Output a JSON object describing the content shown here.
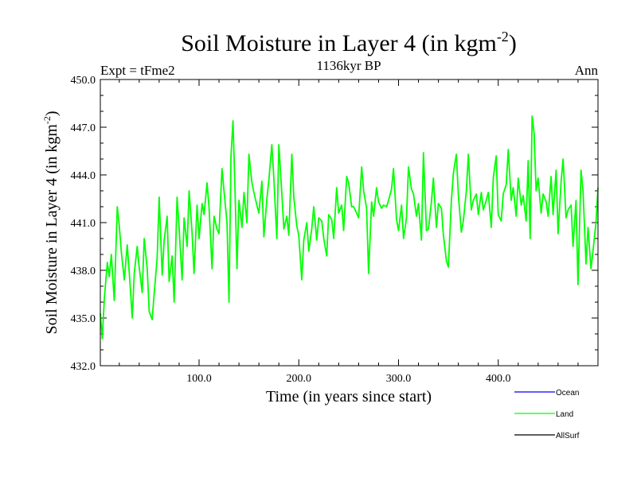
{
  "chart_data": {
    "type": "line",
    "title": "Soil Moisture in Layer 4 (in kgm",
    "title_sup": "-2",
    "title_close": ")",
    "subtitle": "1136kyr BP",
    "left_label": "Expt = tFme2",
    "right_label": "Ann",
    "xlabel": "Time (in years since start)",
    "ylabel": "Soil Moisture in Layer 4 (in kgm",
    "ylabel_sup": "-2",
    "ylabel_close": ")",
    "xlim": [
      1,
      500
    ],
    "ylim": [
      432,
      450
    ],
    "xticks": [
      100,
      200,
      300,
      400
    ],
    "xtick_labels": [
      "100.0",
      "200.0",
      "300.0",
      "400.0"
    ],
    "yticks": [
      432,
      435,
      438,
      441,
      444,
      447,
      450
    ],
    "ytick_labels": [
      "432.0",
      "435.0",
      "438.0",
      "441.0",
      "444.0",
      "447.0",
      "450.0"
    ],
    "legend": [
      {
        "name": "Ocean",
        "color": "#0000ff"
      },
      {
        "name": "Land",
        "color": "#00ff00"
      },
      {
        "name": "AllSurf",
        "color": "#000000"
      }
    ],
    "series": [
      {
        "name": "Land",
        "color": "#00ff00",
        "x": [
          1,
          3,
          5,
          8,
          10,
          12,
          15,
          18,
          20,
          22,
          25,
          28,
          30,
          33,
          35,
          38,
          40,
          43,
          45,
          48,
          50,
          53,
          55,
          58,
          60,
          63,
          65,
          68,
          70,
          73,
          75,
          78,
          80,
          83,
          85,
          88,
          90,
          93,
          95,
          98,
          100,
          103,
          105,
          108,
          110,
          113,
          115,
          118,
          120,
          123,
          125,
          128,
          130,
          132,
          134,
          136,
          138,
          140,
          143,
          145,
          148,
          150,
          153,
          155,
          158,
          160,
          163,
          165,
          168,
          170,
          173,
          175,
          178,
          180,
          183,
          185,
          188,
          190,
          193,
          195,
          198,
          200,
          203,
          205,
          208,
          210,
          213,
          215,
          218,
          220,
          223,
          225,
          228,
          230,
          233,
          235,
          238,
          240,
          243,
          245,
          248,
          250,
          253,
          255,
          258,
          260,
          263,
          265,
          268,
          270,
          273,
          275,
          278,
          280,
          283,
          285,
          288,
          290,
          293,
          295,
          298,
          300,
          303,
          305,
          308,
          310,
          313,
          315,
          318,
          320,
          323,
          325,
          328,
          330,
          333,
          335,
          338,
          340,
          343,
          345,
          348,
          350,
          353,
          355,
          358,
          360,
          363,
          365,
          368,
          370,
          373,
          375,
          378,
          380,
          383,
          385,
          388,
          390,
          393,
          395,
          398,
          400,
          403,
          405,
          408,
          410,
          413,
          415,
          418,
          420,
          423,
          425,
          428,
          430,
          432,
          434,
          436,
          438,
          440,
          443,
          445,
          448,
          450,
          453,
          455,
          458,
          460,
          463,
          465,
          468,
          470,
          473,
          475,
          478,
          480,
          483,
          485,
          488,
          490,
          493,
          495,
          498,
          500
        ],
        "values": [
          435.3,
          433.7,
          436.2,
          438.5,
          437.6,
          439.0,
          436.1,
          442.0,
          440.8,
          439.2,
          437.4,
          439.6,
          437.9,
          435.0,
          437.8,
          439.5,
          438.2,
          436.6,
          440.0,
          438.1,
          435.4,
          434.9,
          436.5,
          438.8,
          442.6,
          437.7,
          439.9,
          441.4,
          437.3,
          438.9,
          436.0,
          442.6,
          440.7,
          437.4,
          441.3,
          439.5,
          443.0,
          440.4,
          437.8,
          442.1,
          440.0,
          442.2,
          441.5,
          443.5,
          442.0,
          438.1,
          441.4,
          440.6,
          440.3,
          444.4,
          443.0,
          441.0,
          436.0,
          445.2,
          447.4,
          443.2,
          438.1,
          442.4,
          440.7,
          442.9,
          441.0,
          445.3,
          443.5,
          442.9,
          442.1,
          441.6,
          443.6,
          440.1,
          442.5,
          443.7,
          445.9,
          443.8,
          440.0,
          445.9,
          442.8,
          440.6,
          441.4,
          440.2,
          445.3,
          442.6,
          440.8,
          440.2,
          437.4,
          439.9,
          441.0,
          439.2,
          440.6,
          442.0,
          439.9,
          441.3,
          441.1,
          440.0,
          438.9,
          441.5,
          441.2,
          440.0,
          443.2,
          441.6,
          442.1,
          440.5,
          443.9,
          443.5,
          442.0,
          442.0,
          441.6,
          441.3,
          444.5,
          443.0,
          441.9,
          437.8,
          442.3,
          441.4,
          443.2,
          442.3,
          441.9,
          442.1,
          442.0,
          442.4,
          443.1,
          444.4,
          441.2,
          440.5,
          442.1,
          440.0,
          441.3,
          444.5,
          443.1,
          442.8,
          441.4,
          442.2,
          439.9,
          445.4,
          440.5,
          440.6,
          442.3,
          443.8,
          440.7,
          442.2,
          441.9,
          440.2,
          438.6,
          438.2,
          442.4,
          444.1,
          445.3,
          442.8,
          440.4,
          441.1,
          443.0,
          445.3,
          441.8,
          442.4,
          442.8,
          441.5,
          442.9,
          441.8,
          442.4,
          442.9,
          440.7,
          443.8,
          445.2,
          441.5,
          441.1,
          442.8,
          443.4,
          445.6,
          442.4,
          443.2,
          441.4,
          443.8,
          442.1,
          442.7,
          441.1,
          444.9,
          440.0,
          447.7,
          446.6,
          443.0,
          443.8,
          441.6,
          442.8,
          442.3,
          441.4,
          443.9,
          441.5,
          444.3,
          440.3,
          443.6,
          445.0,
          441.3,
          441.8,
          442.1,
          439.5,
          442.4,
          437.1,
          444.3,
          443.0,
          438.4,
          440.7,
          438.1,
          439.2,
          441.0,
          443.2
        ]
      }
    ]
  }
}
